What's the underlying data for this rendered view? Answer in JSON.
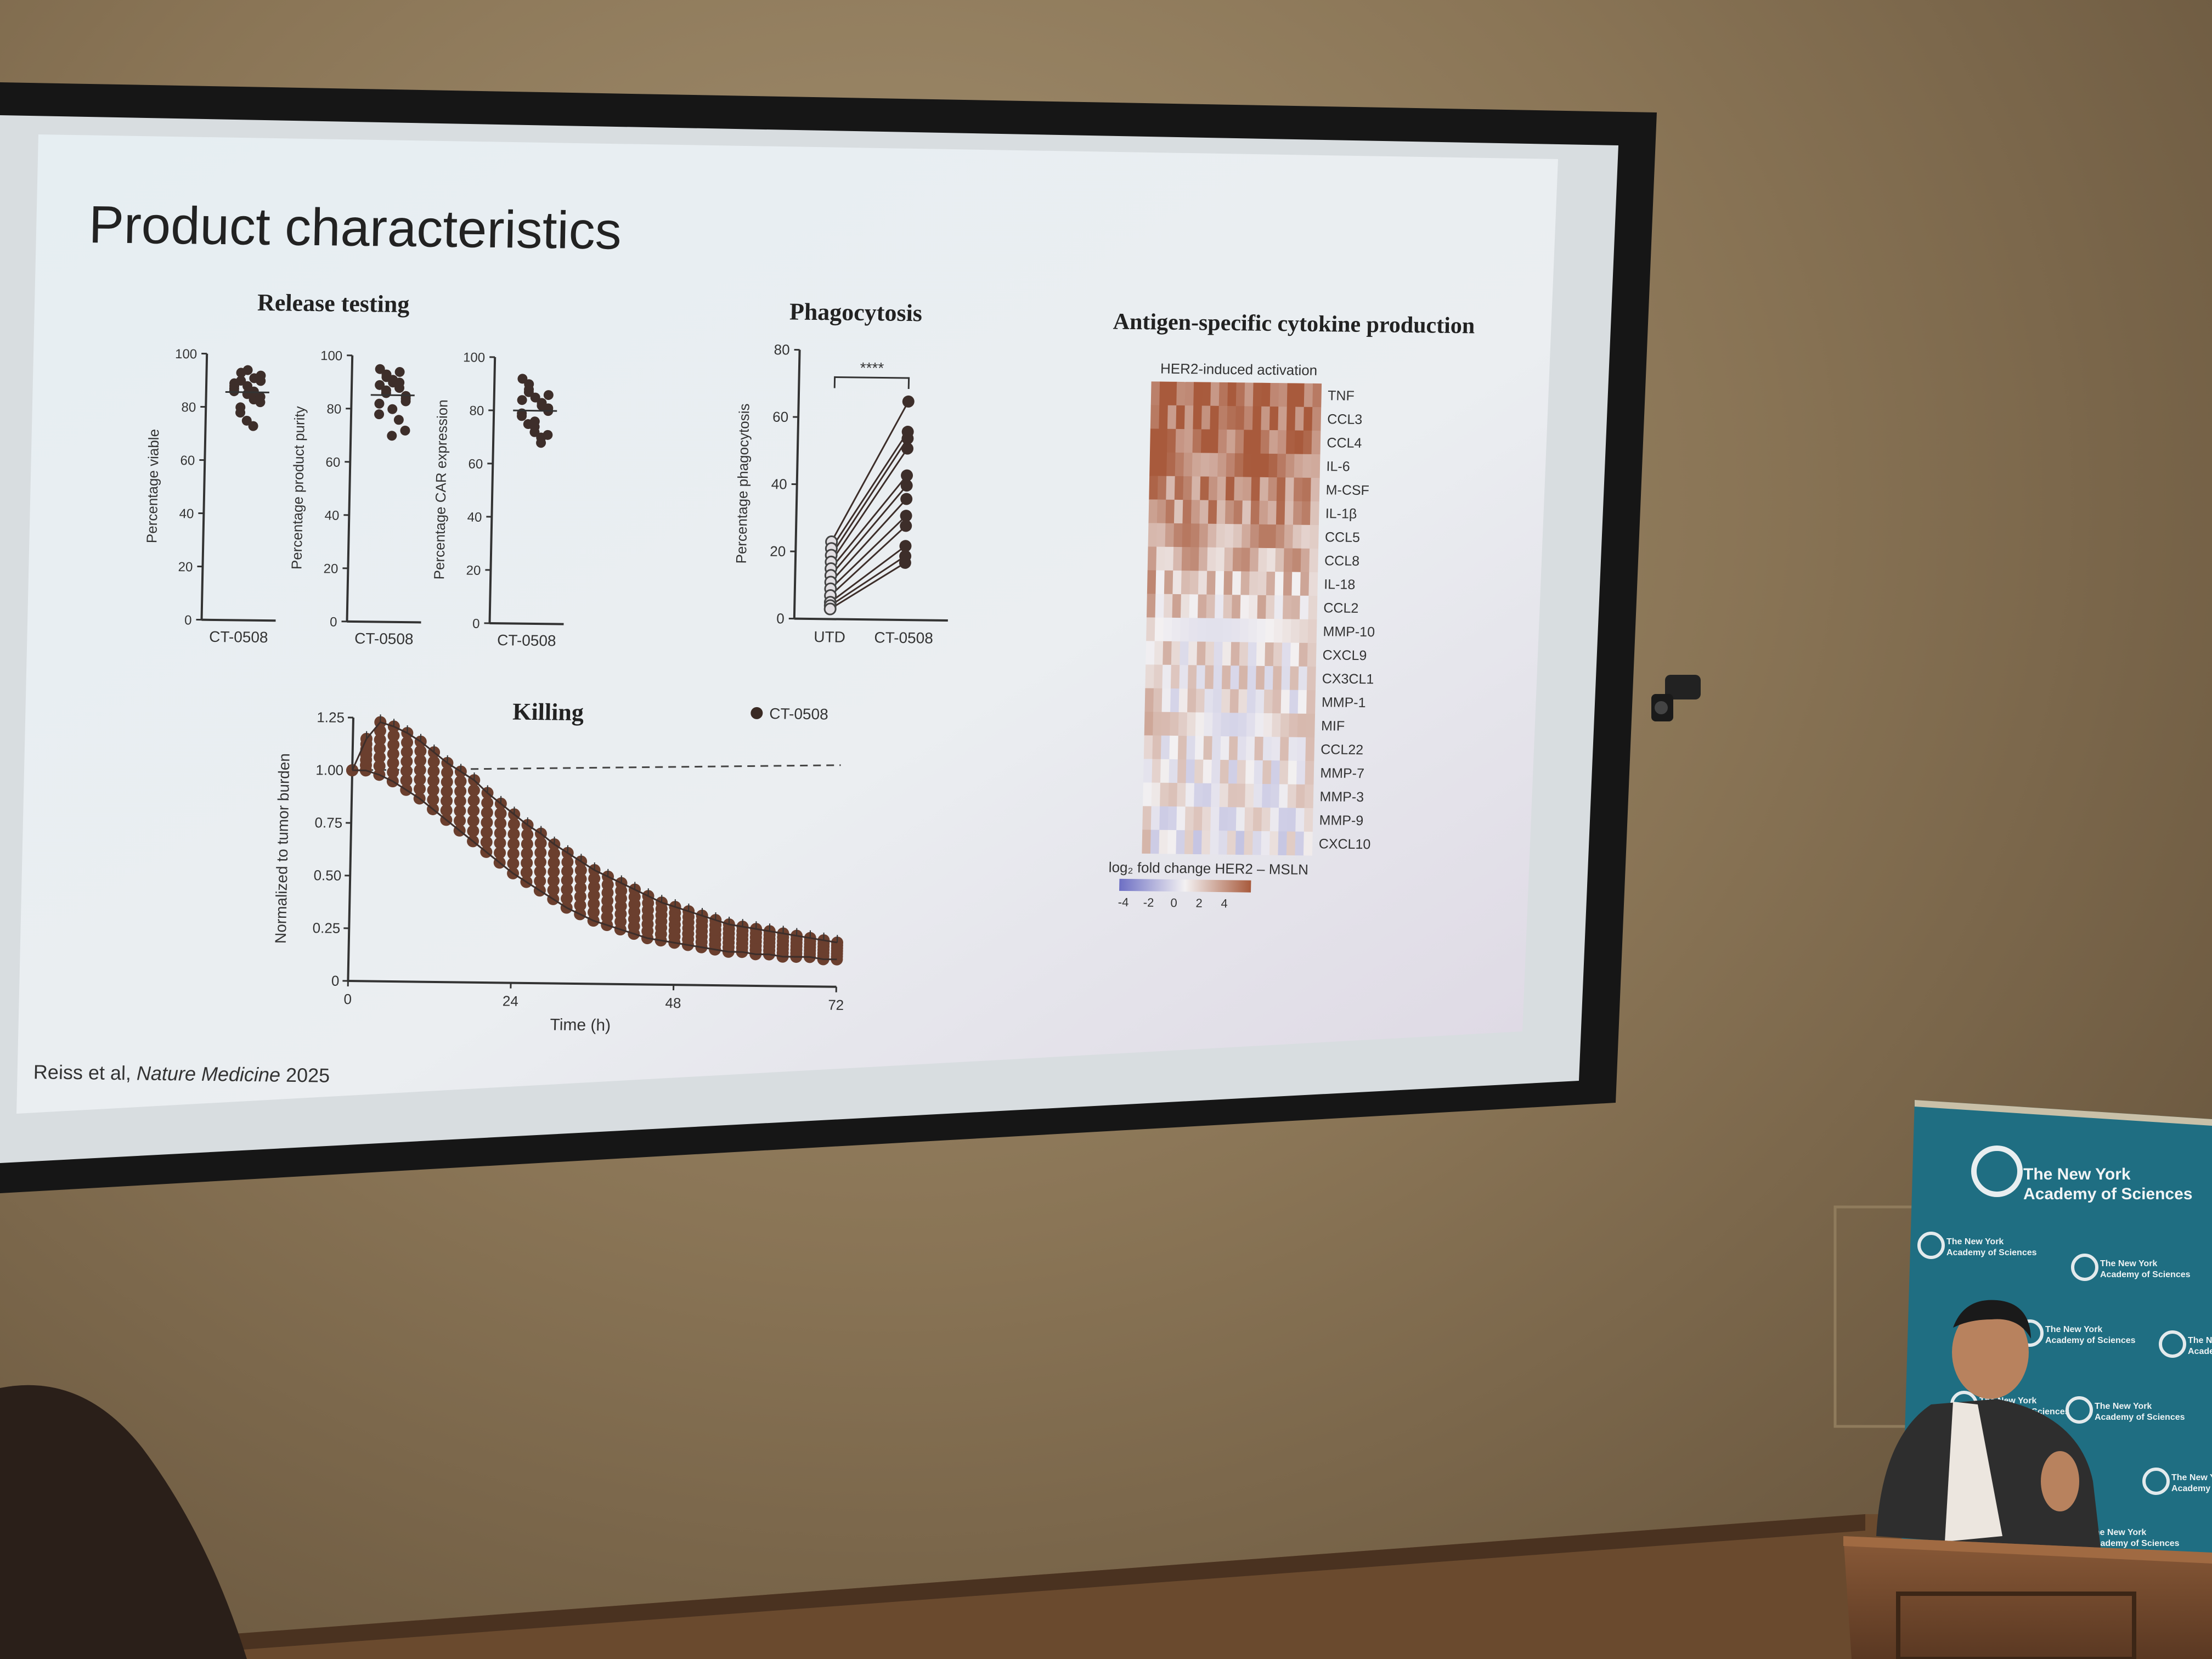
{
  "slide": {
    "title": "Product characteristics",
    "citation_author": "Reiss et al, ",
    "citation_journal": "Nature Medicine",
    "citation_year": " 2025"
  },
  "release_testing": {
    "heading": "Release testing",
    "panels": [
      {
        "ylabel": "Percentage viable",
        "xtick": "CT-0508",
        "yticks": [
          "0",
          "20",
          "40",
          "60",
          "80",
          "100"
        ],
        "values": [
          88,
          90,
          85,
          83,
          92,
          87,
          80,
          94,
          86,
          82,
          89,
          78,
          75,
          91,
          84,
          86,
          93,
          88,
          73,
          90
        ]
      },
      {
        "ylabel": "Percentage product purity",
        "xtick": "CT-0508",
        "yticks": [
          "0",
          "20",
          "40",
          "60",
          "80",
          "100"
        ],
        "values": [
          95,
          92,
          90,
          88,
          85,
          82,
          93,
          80,
          76,
          72,
          89,
          87,
          91,
          94,
          84,
          78,
          86,
          70,
          90,
          83
        ]
      },
      {
        "ylabel": "Percentage CAR expression",
        "xtick": "CT-0508",
        "yticks": [
          "0",
          "20",
          "40",
          "60",
          "80",
          "100"
        ],
        "values": [
          92,
          88,
          85,
          82,
          80,
          78,
          75,
          72,
          70,
          86,
          84,
          90,
          76,
          68,
          81,
          79,
          87,
          74,
          83,
          71
        ]
      }
    ]
  },
  "phagocytosis": {
    "heading": "Phagocytosis",
    "ylabel": "Percentage phagocytosis",
    "yticks": [
      "0",
      "20",
      "40",
      "60",
      "80"
    ],
    "xcats": [
      "UTD",
      "CT-0508"
    ],
    "significance": "****",
    "pairs": [
      [
        23,
        65
      ],
      [
        21,
        56
      ],
      [
        19,
        54
      ],
      [
        17,
        51
      ],
      [
        15,
        43
      ],
      [
        13,
        40
      ],
      [
        11,
        36
      ],
      [
        9,
        31
      ],
      [
        7,
        28
      ],
      [
        5,
        22
      ],
      [
        4,
        19
      ],
      [
        3,
        17
      ]
    ]
  },
  "killing": {
    "heading": "Killing",
    "legend": "CT-0508",
    "ylabel": "Normalized to tumor burden",
    "xlabel": "Time (h)",
    "yticks": [
      "0",
      "0.25",
      "0.50",
      "0.75",
      "1.00",
      "1.25"
    ],
    "xticks": [
      "0",
      "24",
      "48",
      "72"
    ],
    "x_hours": [
      0,
      2,
      4,
      6,
      8,
      10,
      12,
      14,
      16,
      18,
      20,
      22,
      24,
      26,
      28,
      30,
      32,
      34,
      36,
      38,
      40,
      42,
      44,
      46,
      48,
      50,
      52,
      54,
      56,
      58,
      60,
      62,
      64,
      66,
      68,
      70,
      72
    ],
    "upper_curve": [
      1.0,
      1.15,
      1.23,
      1.21,
      1.18,
      1.14,
      1.09,
      1.04,
      1.0,
      0.96,
      0.9,
      0.85,
      0.8,
      0.75,
      0.71,
      0.66,
      0.62,
      0.58,
      0.54,
      0.51,
      0.48,
      0.45,
      0.42,
      0.39,
      0.37,
      0.35,
      0.33,
      0.31,
      0.29,
      0.28,
      0.27,
      0.26,
      0.25,
      0.24,
      0.23,
      0.22,
      0.21
    ],
    "lower_curve": [
      1.0,
      1.0,
      0.98,
      0.95,
      0.91,
      0.87,
      0.82,
      0.77,
      0.72,
      0.67,
      0.62,
      0.57,
      0.52,
      0.48,
      0.44,
      0.4,
      0.36,
      0.33,
      0.3,
      0.28,
      0.26,
      0.24,
      0.22,
      0.21,
      0.2,
      0.19,
      0.18,
      0.17,
      0.16,
      0.16,
      0.15,
      0.15,
      0.14,
      0.14,
      0.14,
      0.13,
      0.13
    ],
    "reference_line": 1.0
  },
  "cytokine": {
    "heading": "Antigen-specific cytokine production",
    "subtitle": "HER2-induced activation",
    "genes": [
      "TNF",
      "CCL3",
      "CCL4",
      "IL-6",
      "M-CSF",
      "IL-1β",
      "CCL5",
      "CCL8",
      "IL-18",
      "CCL2",
      "MMP-10",
      "CXCL9",
      "CX3CL1",
      "MMP-1",
      "MIF",
      "CCL22",
      "MMP-7",
      "MMP-3",
      "MMP-9",
      "CXCL10"
    ],
    "row_intensity": [
      3.5,
      3.4,
      3.3,
      3.0,
      2.7,
      2.4,
      2.0,
      1.6,
      1.1,
      0.9,
      0.7,
      0.5,
      0.4,
      0.3,
      0.3,
      0.2,
      0.1,
      0.1,
      0.0,
      -0.2
    ],
    "n_columns": 20,
    "legend_title": "log₂ fold change HER2 – MSLN",
    "legend_ticks": [
      "-4",
      "-2",
      "0",
      "2",
      "4"
    ],
    "low_color": "#6d6fc4",
    "mid_color": "#f3f1f2",
    "high_color": "#a85a3c"
  },
  "banner": {
    "org_line1": "The New York",
    "org_line2": "Academy of Sciences",
    "color": "#1f6e82"
  }
}
